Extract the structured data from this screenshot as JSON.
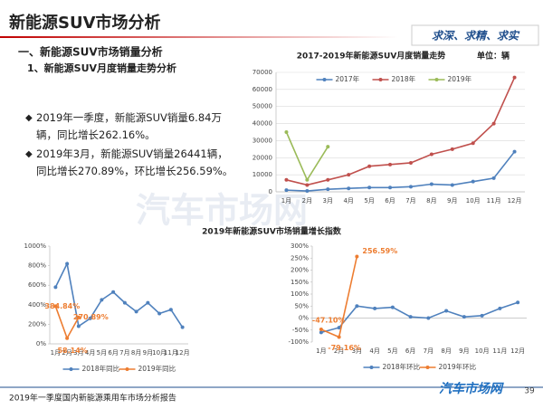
{
  "header": {
    "title": "新能源SUV市场分析",
    "slogan": "求深、求精、求实"
  },
  "section": "一、新能源SUV市场销量分析",
  "subsection": "1、新能源SUV月度销量走势分析",
  "bullets": [
    "2019年一季度，新能源SUV销量6.84万辆，同比增长262.16%。",
    "2019年3月，新能源SUV销量26441辆，同比增长270.89%，环比增长256.59%。"
  ],
  "growth_title": "2019年新能源SUV市场销量增长指数",
  "watermark": "汽车市场网",
  "footer": {
    "text": "2019年一季度国内新能源乘用车市场分析报告",
    "logo": "汽车市场网",
    "page": "39"
  },
  "chart_data": [
    {
      "type": "line",
      "title": "2017-2019年新能源SUV月度销量走势",
      "unit": "单位：辆",
      "categories": [
        "1月",
        "2月",
        "3月",
        "4月",
        "5月",
        "6月",
        "7月",
        "8月",
        "9月",
        "10月",
        "11月",
        "12月"
      ],
      "ylim": [
        0,
        70000
      ],
      "yticks": [
        0,
        10000,
        20000,
        30000,
        40000,
        50000,
        60000,
        70000
      ],
      "grid": true,
      "legend": "top",
      "series": [
        {
          "name": "2017年",
          "color": "#4f81bd",
          "values": [
            1000,
            500,
            1500,
            2000,
            2500,
            2500,
            3000,
            4500,
            4000,
            6000,
            8000,
            23500
          ]
        },
        {
          "name": "2018年",
          "color": "#c0504d",
          "values": [
            7000,
            4000,
            7000,
            10000,
            15000,
            16000,
            17000,
            22000,
            25000,
            28500,
            40000,
            67000
          ]
        },
        {
          "name": "2019年",
          "color": "#9bbb59",
          "values": [
            35000,
            7000,
            26441,
            null,
            null,
            null,
            null,
            null,
            null,
            null,
            null,
            null
          ]
        }
      ]
    },
    {
      "type": "line",
      "categories": [
        "1月",
        "2月",
        "3月",
        "4月",
        "5月",
        "6月",
        "7月",
        "8月",
        "9月",
        "10月",
        "11月",
        "12月"
      ],
      "ylim": [
        0,
        1000
      ],
      "yticks": [
        {
          "value": 0,
          "label": "0%"
        },
        {
          "value": 200,
          "label": "200%"
        },
        {
          "value": 400,
          "label": "400%"
        },
        {
          "value": 600,
          "label": "600%"
        },
        {
          "value": 800,
          "label": "800%"
        },
        {
          "value": 1000,
          "label": "1000%"
        }
      ],
      "grid": false,
      "legend": "bottom",
      "series": [
        {
          "name": "2018年同比",
          "color": "#4f81bd",
          "values": [
            580,
            820,
            180,
            260,
            450,
            530,
            420,
            330,
            420,
            310,
            350,
            170
          ]
        },
        {
          "name": "2019年同比",
          "color": "#ed7d31",
          "values": [
            384.84,
            58.14,
            270.89,
            null,
            null,
            null,
            null,
            null,
            null,
            null,
            null,
            null
          ],
          "value_labels": [
            "384.84%",
            "58.14%",
            "270.89%",
            null,
            null,
            null,
            null,
            null,
            null,
            null,
            null,
            null
          ]
        }
      ]
    },
    {
      "type": "line",
      "categories": [
        "1月",
        "2月",
        "3月",
        "4月",
        "5月",
        "6月",
        "7月",
        "8月",
        "9月",
        "10月",
        "11月",
        "12月"
      ],
      "ylim": [
        -100,
        300
      ],
      "yticks": [
        {
          "value": -100,
          "label": "-100%"
        },
        {
          "value": -50,
          "label": "-50%"
        },
        {
          "value": 0,
          "label": "0%"
        },
        {
          "value": 50,
          "label": "50%"
        },
        {
          "value": 100,
          "label": "100%"
        },
        {
          "value": 150,
          "label": "150%"
        },
        {
          "value": 200,
          "label": "200%"
        },
        {
          "value": 250,
          "label": "250%"
        },
        {
          "value": 300,
          "label": "300%"
        }
      ],
      "grid": false,
      "legend": "bottom",
      "series": [
        {
          "name": "2018年环比",
          "color": "#4f81bd",
          "values": [
            -60,
            -40,
            50,
            40,
            45,
            5,
            0,
            30,
            5,
            10,
            40,
            65
          ]
        },
        {
          "name": "2019年环比",
          "color": "#ed7d31",
          "values": [
            -47.1,
            -79.16,
            256.59,
            null,
            null,
            null,
            null,
            null,
            null,
            null,
            null,
            null
          ],
          "value_labels": [
            "-47.10%",
            "-79.16%",
            "256.59%",
            null,
            null,
            null,
            null,
            null,
            null,
            null,
            null,
            null
          ]
        }
      ]
    }
  ]
}
